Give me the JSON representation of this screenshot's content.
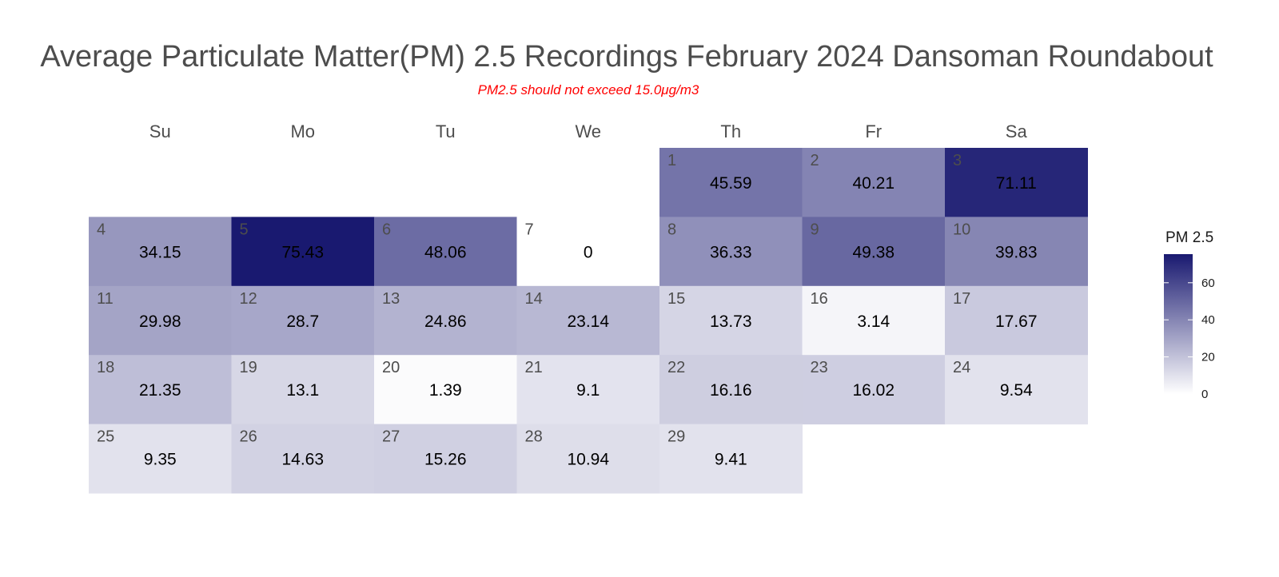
{
  "chart_data": {
    "type": "heatmap",
    "title": "Average Particulate Matter(PM) 2.5 Recordings February 2024 Dansoman Roundabout",
    "subtitle": "PM2.5 should not exceed 15.0μg/m3",
    "weekdays": [
      "Su",
      "Mo",
      "Tu",
      "We",
      "Th",
      "Fr",
      "Sa"
    ],
    "first_weekday_index": 4,
    "days": [
      {
        "day": 1,
        "value": 45.59
      },
      {
        "day": 2,
        "value": 40.21
      },
      {
        "day": 3,
        "value": 71.11
      },
      {
        "day": 4,
        "value": 34.15
      },
      {
        "day": 5,
        "value": 75.43
      },
      {
        "day": 6,
        "value": 48.06
      },
      {
        "day": 7,
        "value": 0
      },
      {
        "day": 8,
        "value": 36.33
      },
      {
        "day": 9,
        "value": 49.38
      },
      {
        "day": 10,
        "value": 39.83
      },
      {
        "day": 11,
        "value": 29.98
      },
      {
        "day": 12,
        "value": 28.7
      },
      {
        "day": 13,
        "value": 24.86
      },
      {
        "day": 14,
        "value": 23.14
      },
      {
        "day": 15,
        "value": 13.73
      },
      {
        "day": 16,
        "value": 3.14
      },
      {
        "day": 17,
        "value": 17.67
      },
      {
        "day": 18,
        "value": 21.35
      },
      {
        "day": 19,
        "value": 13.1
      },
      {
        "day": 20,
        "value": 1.39
      },
      {
        "day": 21,
        "value": 9.1
      },
      {
        "day": 22,
        "value": 16.16
      },
      {
        "day": 23,
        "value": 16.02
      },
      {
        "day": 24,
        "value": 9.54
      },
      {
        "day": 25,
        "value": 9.35
      },
      {
        "day": 26,
        "value": 14.63
      },
      {
        "day": 27,
        "value": 15.26
      },
      {
        "day": 28,
        "value": 10.94
      },
      {
        "day": 29,
        "value": 9.41
      }
    ],
    "legend": {
      "title": "PM 2.5",
      "ticks": [
        0,
        20,
        40,
        60
      ],
      "range": [
        0,
        75.43
      ],
      "colors": {
        "low": "#ffffff",
        "high": "#191970"
      }
    }
  }
}
